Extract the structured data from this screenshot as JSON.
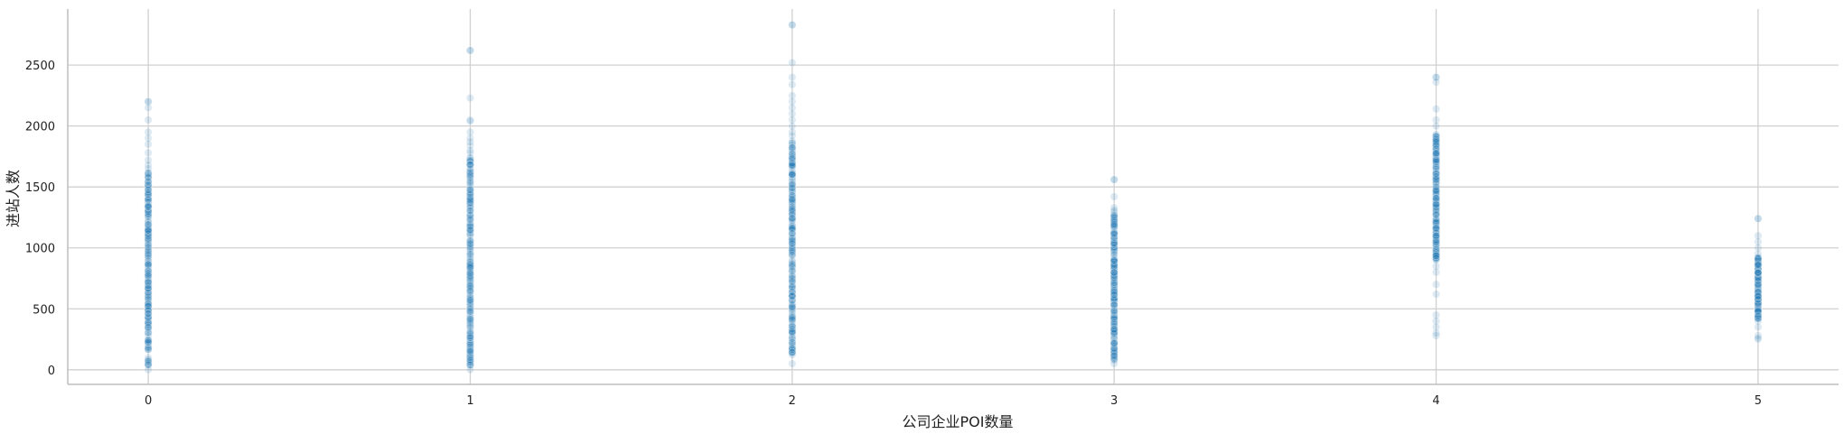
{
  "chart_data": {
    "type": "scatter",
    "xlabel": "公司企业POI数量",
    "ylabel": "进站人数",
    "xlim": [
      -0.25,
      5.25
    ],
    "ylim": [
      -120,
      2960
    ],
    "grid": true,
    "x_ticks": [
      0,
      1,
      2,
      3,
      4,
      5
    ],
    "y_ticks": [
      0,
      500,
      1000,
      1500,
      2000,
      2500
    ],
    "point_color": "#1f77b4",
    "point_alpha": 0.15,
    "groups": [
      {
        "x": 0,
        "y_min": 0,
        "y_max": 2200,
        "dense_range": [
          30,
          1620
        ],
        "outliers": [
          2200,
          2150,
          2050,
          1950,
          1900,
          1850,
          1780,
          1720,
          1680,
          1650
        ]
      },
      {
        "x": 1,
        "y_min": 0,
        "y_max": 2620,
        "dense_range": [
          30,
          1750
        ],
        "outliers": [
          2620,
          2230,
          2050,
          2040,
          1950,
          1900,
          1870,
          1840,
          1800,
          1780
        ]
      },
      {
        "x": 2,
        "y_min": 50,
        "y_max": 2830,
        "dense_range": [
          120,
          1880
        ],
        "outliers": [
          2830,
          2520,
          2400,
          2340,
          2250,
          2200,
          2150,
          2100,
          2050,
          2000,
          1950,
          1920
        ]
      },
      {
        "x": 3,
        "y_min": 50,
        "y_max": 1560,
        "dense_range": [
          80,
          1300
        ],
        "outliers": [
          1560,
          1420,
          1330,
          1310
        ]
      },
      {
        "x": 4,
        "y_min": 280,
        "y_max": 2400,
        "dense_range": [
          900,
          1950
        ],
        "outliers": [
          2400,
          2360,
          2140,
          2050,
          2000,
          850,
          800,
          700,
          620,
          450,
          400,
          350,
          300
        ]
      },
      {
        "x": 5,
        "y_min": 250,
        "y_max": 1240,
        "dense_range": [
          420,
          920
        ],
        "outliers": [
          1240,
          1100,
          1050,
          1000,
          950,
          400,
          350,
          280,
          260
        ]
      }
    ]
  }
}
